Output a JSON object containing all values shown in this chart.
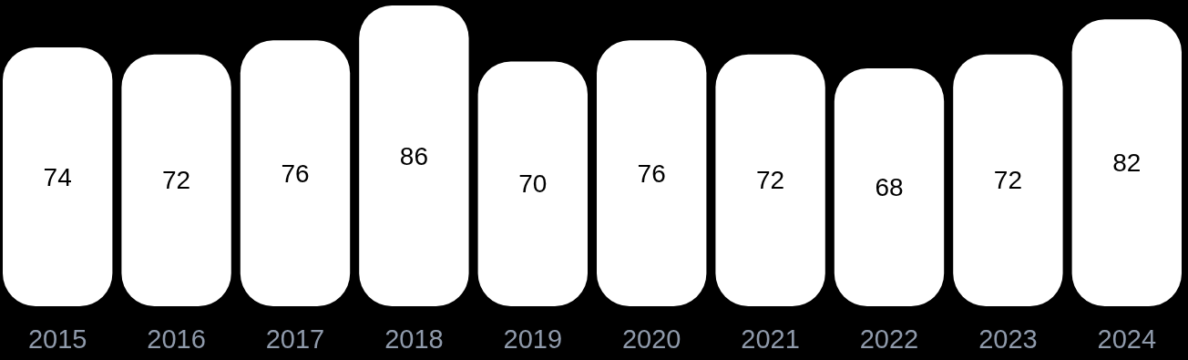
{
  "chart_data": {
    "type": "bar",
    "categories": [
      "2015",
      "2016",
      "2017",
      "2018",
      "2019",
      "2020",
      "2021",
      "2022",
      "2023",
      "2024"
    ],
    "values": [
      74,
      72,
      76,
      86,
      70,
      76,
      72,
      68,
      72,
      82
    ],
    "color": "#ffffff",
    "data_labels": true
  }
}
